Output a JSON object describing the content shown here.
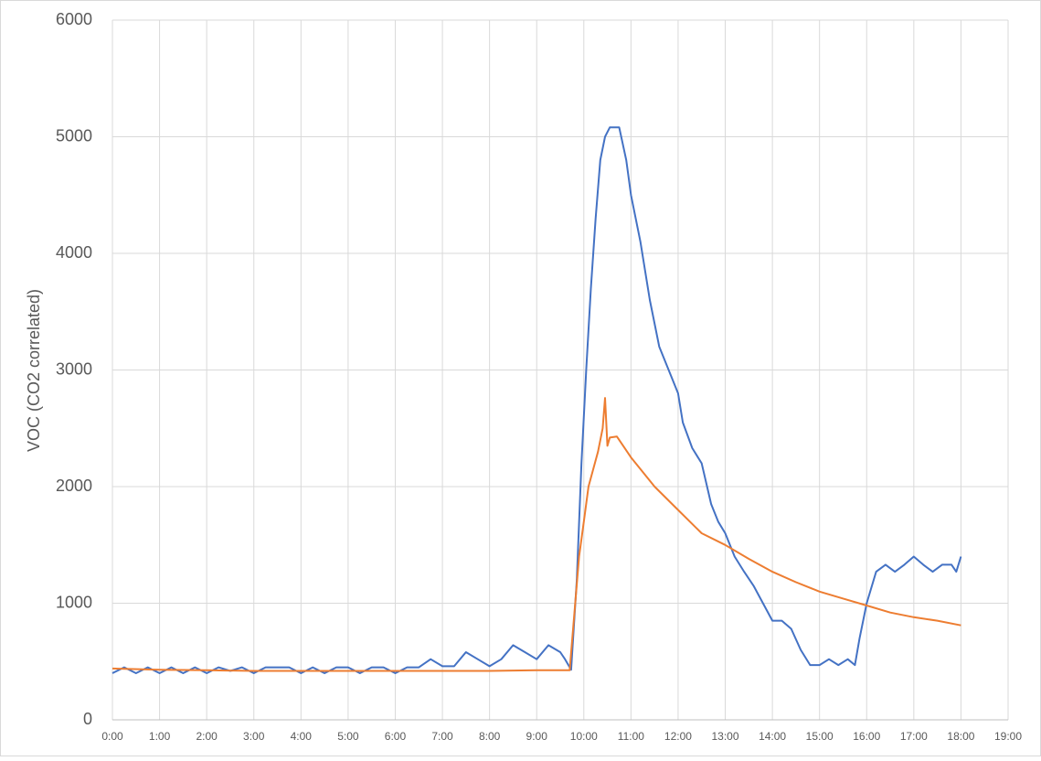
{
  "chart_data": {
    "type": "line",
    "ylabel": "VOC (CO2 correlated)",
    "xlim": [
      0,
      19
    ],
    "ylim": [
      0,
      6000
    ],
    "xticks": [
      {
        "value": 0,
        "label": "0:00"
      },
      {
        "value": 1,
        "label": "1:00"
      },
      {
        "value": 2,
        "label": "2:00"
      },
      {
        "value": 3,
        "label": "3:00"
      },
      {
        "value": 4,
        "label": "4:00"
      },
      {
        "value": 5,
        "label": "5:00"
      },
      {
        "value": 6,
        "label": "6:00"
      },
      {
        "value": 7,
        "label": "7:00"
      },
      {
        "value": 8,
        "label": "8:00"
      },
      {
        "value": 9,
        "label": "9:00"
      },
      {
        "value": 10,
        "label": "10:00"
      },
      {
        "value": 11,
        "label": "11:00"
      },
      {
        "value": 12,
        "label": "12:00"
      },
      {
        "value": 13,
        "label": "13:00"
      },
      {
        "value": 14,
        "label": "14:00"
      },
      {
        "value": 15,
        "label": "15:00"
      },
      {
        "value": 16,
        "label": "16:00"
      },
      {
        "value": 17,
        "label": "17:00"
      },
      {
        "value": 18,
        "label": "18:00"
      },
      {
        "value": 19,
        "label": "19:00"
      }
    ],
    "yticks": [
      0,
      1000,
      2000,
      3000,
      4000,
      5000,
      6000
    ],
    "grid": true,
    "series": [
      {
        "color": "#4472c4",
        "x": [
          0,
          0.25,
          0.5,
          0.75,
          1,
          1.25,
          1.5,
          1.75,
          2,
          2.25,
          2.5,
          2.75,
          3,
          3.25,
          3.5,
          3.75,
          4,
          4.25,
          4.5,
          4.75,
          5,
          5.25,
          5.5,
          5.75,
          6,
          6.25,
          6.5,
          6.75,
          7,
          7.25,
          7.5,
          7.75,
          8,
          8.25,
          8.5,
          8.75,
          9,
          9.25,
          9.5,
          9.6,
          9.73,
          9.85,
          9.95,
          10.05,
          10.15,
          10.25,
          10.35,
          10.45,
          10.55,
          10.75,
          10.9,
          11.0,
          11.2,
          11.4,
          11.6,
          11.8,
          12.0,
          12.1,
          12.3,
          12.5,
          12.7,
          12.85,
          13.0,
          13.2,
          13.4,
          13.6,
          13.8,
          14.0,
          14.2,
          14.4,
          14.6,
          14.8,
          15.0,
          15.2,
          15.4,
          15.6,
          15.75,
          15.85,
          16.0,
          16.2,
          16.4,
          16.6,
          16.8,
          17.0,
          17.2,
          17.4,
          17.6,
          17.8,
          17.9,
          18.0
        ],
        "values": [
          400,
          450,
          400,
          450,
          400,
          450,
          400,
          450,
          400,
          450,
          420,
          450,
          400,
          450,
          450,
          450,
          400,
          450,
          400,
          450,
          450,
          400,
          450,
          450,
          400,
          450,
          450,
          520,
          460,
          460,
          580,
          520,
          460,
          520,
          640,
          580,
          520,
          640,
          580,
          520,
          430,
          1200,
          2200,
          3000,
          3700,
          4300,
          4800,
          5000,
          5080,
          5080,
          4800,
          4500,
          4100,
          3600,
          3200,
          3000,
          2800,
          2550,
          2330,
          2200,
          1850,
          1700,
          1600,
          1400,
          1270,
          1150,
          1000,
          850,
          850,
          780,
          600,
          470,
          470,
          520,
          470,
          520,
          470,
          700,
          1000,
          1270,
          1330,
          1270,
          1330,
          1400,
          1330,
          1270,
          1330,
          1330,
          1270,
          1400
        ]
      },
      {
        "color": "#ed7d31",
        "x": [
          0,
          1,
          2,
          3,
          4,
          5,
          6,
          7,
          8,
          9,
          9.7,
          9.9,
          10.0,
          10.1,
          10.3,
          10.4,
          10.45,
          10.5,
          10.55,
          10.7,
          11.0,
          11.5,
          12.0,
          12.5,
          13.0,
          13.5,
          14.0,
          14.5,
          15.0,
          15.5,
          16.0,
          16.5,
          17.0,
          17.5,
          18.0
        ],
        "values": [
          440,
          430,
          425,
          420,
          420,
          420,
          420,
          420,
          420,
          425,
          425,
          1400,
          1700,
          2000,
          2300,
          2500,
          2760,
          2350,
          2420,
          2430,
          2250,
          2000,
          1800,
          1600,
          1500,
          1380,
          1270,
          1180,
          1100,
          1040,
          980,
          920,
          880,
          850,
          810
        ]
      }
    ]
  }
}
